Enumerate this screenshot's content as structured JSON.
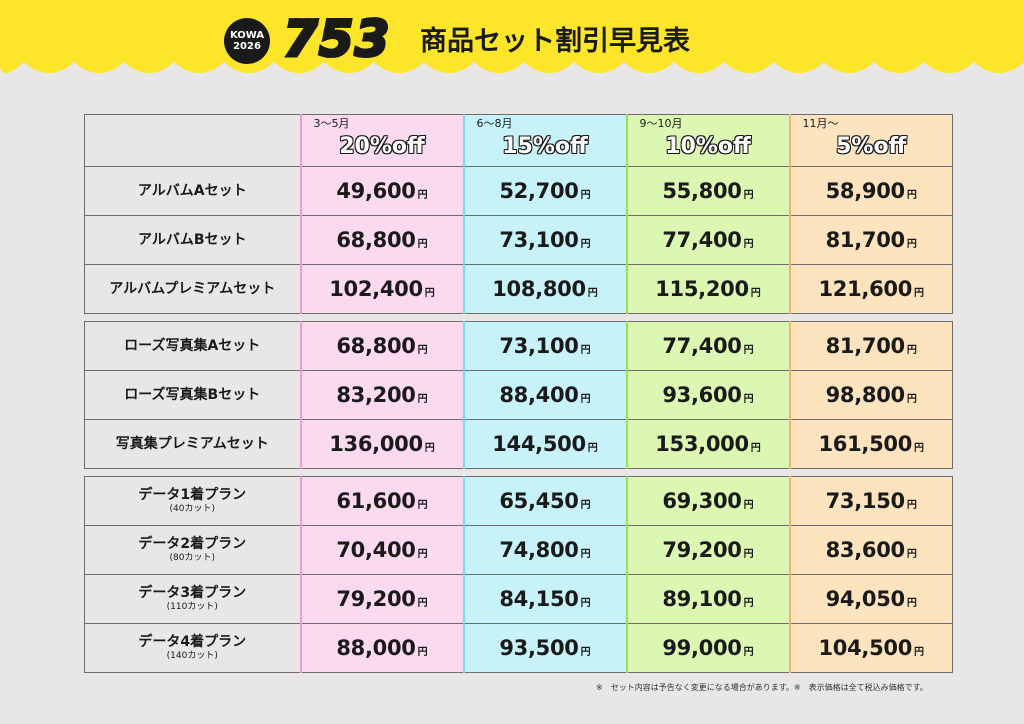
{
  "header": {
    "badge_line1": "KOWA",
    "badge_line2": "2026",
    "title_number": "753",
    "title_text": "商品セット割引早見表",
    "band_color": "#fde52a"
  },
  "columns": [
    {
      "period": "3〜5月",
      "discount": "20%off",
      "color": "#fbd9ee"
    },
    {
      "period": "6〜8月",
      "discount": "15%off",
      "color": "#c8f2f9"
    },
    {
      "period": "9〜10月",
      "discount": "10%off",
      "color": "#dbf7b2"
    },
    {
      "period": "11月〜",
      "discount": "5%off",
      "color": "#fde3be"
    }
  ],
  "yen": "円",
  "groups": [
    {
      "rows": [
        {
          "label": "アルバムAセット",
          "sub": "",
          "prices": [
            "49,600",
            "52,700",
            "55,800",
            "58,900"
          ]
        },
        {
          "label": "アルバムBセット",
          "sub": "",
          "prices": [
            "68,800",
            "73,100",
            "77,400",
            "81,700"
          ]
        },
        {
          "label": "アルバムプレミアムセット",
          "sub": "",
          "prices": [
            "102,400",
            "108,800",
            "115,200",
            "121,600"
          ]
        }
      ]
    },
    {
      "rows": [
        {
          "label": "ローズ写真集Aセット",
          "sub": "",
          "prices": [
            "68,800",
            "73,100",
            "77,400",
            "81,700"
          ]
        },
        {
          "label": "ローズ写真集Bセット",
          "sub": "",
          "prices": [
            "83,200",
            "88,400",
            "93,600",
            "98,800"
          ]
        },
        {
          "label": "写真集プレミアムセット",
          "sub": "",
          "prices": [
            "136,000",
            "144,500",
            "153,000",
            "161,500"
          ]
        }
      ]
    },
    {
      "rows": [
        {
          "label": "データ1着プラン",
          "sub": "(40カット)",
          "prices": [
            "61,600",
            "65,450",
            "69,300",
            "73,150"
          ]
        },
        {
          "label": "データ2着プラン",
          "sub": "(80カット)",
          "prices": [
            "70,400",
            "74,800",
            "79,200",
            "83,600"
          ]
        },
        {
          "label": "データ3着プラン",
          "sub": "(110カット)",
          "prices": [
            "79,200",
            "84,150",
            "89,100",
            "94,050"
          ]
        },
        {
          "label": "データ4着プラン",
          "sub": "(140カット)",
          "prices": [
            "88,000",
            "93,500",
            "99,000",
            "104,500"
          ]
        }
      ]
    }
  ],
  "footnote": "※　セット内容は予告なく変更になる場合があります。※　表示価格は全て税込み価格です。"
}
